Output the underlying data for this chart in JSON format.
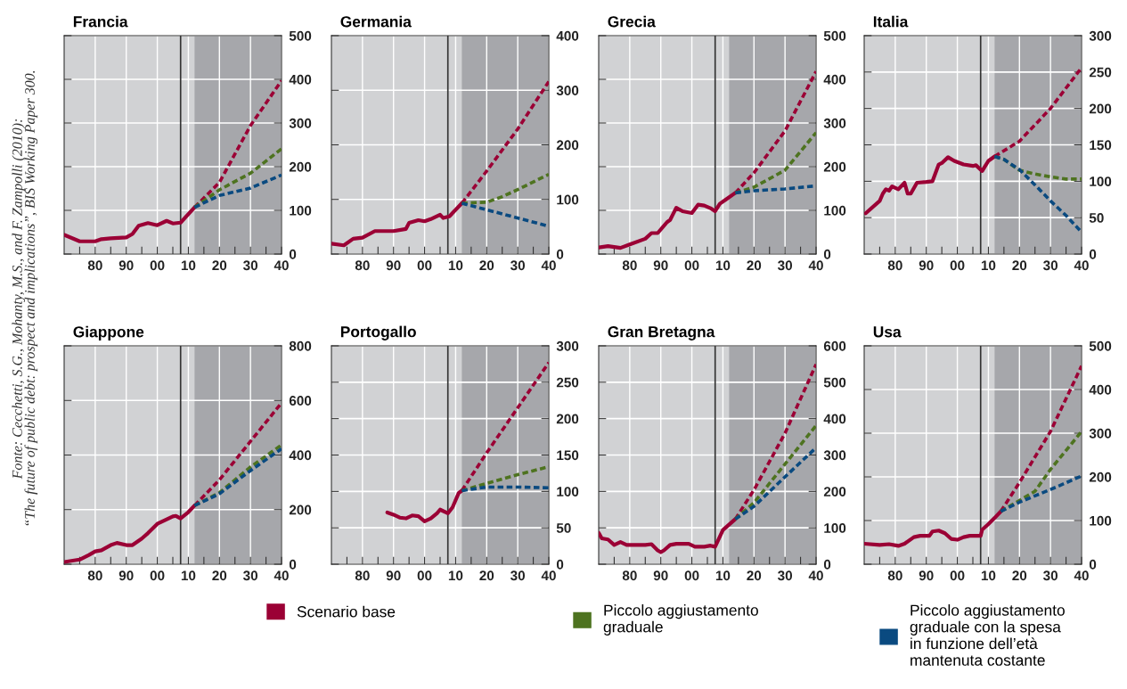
{
  "chart_data": [
    {
      "type": "line",
      "title": "Francia",
      "xlim": [
        1970,
        2040
      ],
      "ylim": [
        0,
        500
      ],
      "yticks": [
        0,
        100,
        200,
        300,
        400,
        500
      ],
      "grid": true,
      "legend": "bottom",
      "xticks": [
        {
          "value": 1975,
          "label": null
        },
        {
          "value": 1980,
          "label": "80"
        },
        {
          "value": 1985,
          "label": null
        },
        {
          "value": 1990,
          "label": "90"
        },
        {
          "value": 1995,
          "label": null
        },
        {
          "value": 2000,
          "label": "00"
        },
        {
          "value": 2005,
          "label": null
        },
        {
          "value": 2010,
          "label": "10"
        },
        {
          "value": 2015,
          "label": null
        },
        {
          "value": 2020,
          "label": "20"
        },
        {
          "value": 2025,
          "label": null
        },
        {
          "value": 2030,
          "label": "30"
        },
        {
          "value": 2035,
          "label": null
        },
        {
          "value": 2040,
          "label": "40"
        }
      ],
      "bands": [
        {
          "axis": "x",
          "from": 2012,
          "to": 2040,
          "color": "#a6a7ab"
        }
      ],
      "ref_lines": [
        {
          "axis": "x",
          "value": 2007.5,
          "color": "#333333"
        }
      ],
      "annotations": [
        "Fonte: Cecchetti, S.G., Mohanty, M.S., and F. Zampolli (2010):\n“The future of public debt: prospect and implications”, BIS Working Paper 300."
      ],
      "series": [
        {
          "color": "#9b0035",
          "line_style": "solid",
          "x": [
            1970,
            1975,
            1980,
            1982,
            1985,
            1990,
            1992,
            1994,
            1997,
            2000,
            2003,
            2005,
            2007.5,
            2012
          ],
          "values": [
            44,
            29,
            29,
            34,
            36,
            38,
            46,
            65,
            71,
            66,
            76,
            70,
            72,
            107
          ]
        },
        {
          "name": "Scenario base",
          "color": "#9b0035",
          "line_style": "dashed",
          "x": [
            2012,
            2020,
            2030,
            2040
          ],
          "values": [
            107,
            164,
            294,
            397
          ]
        },
        {
          "name": "Piccolo aggiustamento\ngraduale",
          "color": "#4e7320",
          "line_style": "dashed",
          "x": [
            2012,
            2020,
            2030,
            2040
          ],
          "values": [
            107,
            147,
            185,
            241
          ]
        },
        {
          "name": "Piccolo aggiustamento\ngraduale con la spesa\nin funzione dell’età\nmantenuta costante",
          "color": "#0a4a80",
          "line_style": "dashed",
          "x": [
            2012,
            2020,
            2030,
            2040
          ],
          "values": [
            107,
            134,
            151,
            181
          ]
        }
      ]
    },
    {
      "type": "line",
      "title": "Germania",
      "xlim": [
        1970,
        2040
      ],
      "ylim": [
        0,
        400
      ],
      "yticks": [
        0,
        100,
        200,
        300,
        400
      ],
      "grid": true,
      "xticks": [
        {
          "value": 1975,
          "label": null
        },
        {
          "value": 1980,
          "label": "80"
        },
        {
          "value": 1985,
          "label": null
        },
        {
          "value": 1990,
          "label": "90"
        },
        {
          "value": 1995,
          "label": null
        },
        {
          "value": 2000,
          "label": "00"
        },
        {
          "value": 2005,
          "label": null
        },
        {
          "value": 2010,
          "label": "10"
        },
        {
          "value": 2015,
          "label": null
        },
        {
          "value": 2020,
          "label": "20"
        },
        {
          "value": 2025,
          "label": null
        },
        {
          "value": 2030,
          "label": "30"
        },
        {
          "value": 2035,
          "label": null
        },
        {
          "value": 2040,
          "label": "40"
        }
      ],
      "bands": [
        {
          "axis": "x",
          "from": 2012,
          "to": 2040,
          "color": "#a6a7ab"
        }
      ],
      "ref_lines": [
        {
          "axis": "x",
          "value": 2007.5,
          "color": "#333333"
        }
      ],
      "series": [
        {
          "color": "#9b0035",
          "line_style": "solid",
          "x": [
            1970,
            1974,
            1977,
            1980,
            1984,
            1987,
            1990,
            1994,
            1995,
            1998,
            2000,
            2002,
            2005,
            2006,
            2008,
            2012
          ],
          "values": [
            19,
            16,
            28,
            30,
            42,
            42,
            42,
            46,
            57,
            62,
            60,
            64,
            72,
            66,
            69,
            93
          ]
        },
        {
          "color": "#9b0035",
          "line_style": "dashed",
          "x": [
            2012,
            2020,
            2030,
            2040
          ],
          "values": [
            93,
            152,
            229,
            316
          ]
        },
        {
          "color": "#4e7320",
          "line_style": "dashed",
          "x": [
            2012,
            2020,
            2025,
            2030,
            2040
          ],
          "values": [
            93,
            95,
            105,
            118,
            146
          ]
        },
        {
          "color": "#0a4a80",
          "line_style": "dashed",
          "x": [
            2012,
            2026,
            2040
          ],
          "values": [
            93,
            72,
            51
          ]
        }
      ]
    },
    {
      "type": "line",
      "title": "Grecia",
      "xlim": [
        1970,
        2040
      ],
      "ylim": [
        0,
        500
      ],
      "yticks": [
        0,
        100,
        200,
        300,
        400,
        500
      ],
      "grid": true,
      "xticks": [
        {
          "value": 1975,
          "label": null
        },
        {
          "value": 1980,
          "label": "80"
        },
        {
          "value": 1985,
          "label": null
        },
        {
          "value": 1990,
          "label": "90"
        },
        {
          "value": 1995,
          "label": null
        },
        {
          "value": 2000,
          "label": "00"
        },
        {
          "value": 2005,
          "label": null
        },
        {
          "value": 2010,
          "label": "10"
        },
        {
          "value": 2015,
          "label": null
        },
        {
          "value": 2020,
          "label": "20"
        },
        {
          "value": 2025,
          "label": null
        },
        {
          "value": 2030,
          "label": "30"
        },
        {
          "value": 2035,
          "label": null
        },
        {
          "value": 2040,
          "label": "40"
        }
      ],
      "bands": [
        {
          "axis": "x",
          "from": 2012,
          "to": 2040,
          "color": "#a6a7ab"
        }
      ],
      "ref_lines": [
        {
          "axis": "x",
          "value": 2007.5,
          "color": "#333333"
        }
      ],
      "series": [
        {
          "color": "#9b0035",
          "line_style": "solid",
          "x": [
            1970,
            1973,
            1977,
            1980,
            1985,
            1987,
            1989,
            1992,
            1993,
            1994,
            1995,
            1997,
            2000,
            2002,
            2004,
            2006,
            2007.5,
            2009,
            2011,
            2014
          ],
          "values": [
            15,
            18,
            14,
            22,
            35,
            48,
            48,
            73,
            78,
            92,
            106,
            98,
            94,
            113,
            111,
            105,
            98,
            115,
            125,
            140
          ]
        },
        {
          "color": "#9b0035",
          "line_style": "dashed",
          "x": [
            2014,
            2020,
            2030,
            2040
          ],
          "values": [
            140,
            186,
            282,
            418
          ]
        },
        {
          "color": "#4e7320",
          "line_style": "dashed",
          "x": [
            2014,
            2020,
            2030,
            2040
          ],
          "values": [
            140,
            153,
            192,
            278
          ]
        },
        {
          "color": "#0a4a80",
          "line_style": "dashed",
          "x": [
            2014,
            2020,
            2030,
            2040
          ],
          "values": [
            140,
            145,
            149,
            156
          ]
        }
      ]
    },
    {
      "type": "line",
      "title": "Italia",
      "xlim": [
        1970,
        2040
      ],
      "ylim": [
        0,
        300
      ],
      "yticks": [
        0,
        50,
        100,
        150,
        200,
        250,
        300
      ],
      "grid": true,
      "xticks": [
        {
          "value": 1975,
          "label": null
        },
        {
          "value": 1980,
          "label": "80"
        },
        {
          "value": 1985,
          "label": null
        },
        {
          "value": 1990,
          "label": "90"
        },
        {
          "value": 1995,
          "label": null
        },
        {
          "value": 2000,
          "label": "00"
        },
        {
          "value": 2005,
          "label": null
        },
        {
          "value": 2010,
          "label": "10"
        },
        {
          "value": 2015,
          "label": null
        },
        {
          "value": 2020,
          "label": "20"
        },
        {
          "value": 2025,
          "label": null
        },
        {
          "value": 2030,
          "label": "30"
        },
        {
          "value": 2035,
          "label": null
        },
        {
          "value": 2040,
          "label": "40"
        }
      ],
      "bands": [
        {
          "axis": "x",
          "from": 2012,
          "to": 2040,
          "color": "#a6a7ab"
        }
      ],
      "ref_lines": [
        {
          "axis": "x",
          "value": 2007.5,
          "color": "#333333"
        }
      ],
      "series": [
        {
          "color": "#9b0035",
          "line_style": "solid",
          "x": [
            1970.5,
            1975,
            1976,
            1977,
            1978,
            1979,
            1981,
            1983,
            1984,
            1985,
            1987,
            1990,
            1992,
            1994,
            1995,
            1997,
            1999,
            2002,
            2005,
            2006,
            2008,
            2009,
            2010,
            2012
          ],
          "values": [
            56,
            73,
            83,
            89,
            87,
            93,
            89,
            98,
            83,
            83,
            98,
            99,
            100,
            123,
            125,
            133,
            128,
            123,
            121,
            122,
            114,
            121,
            128,
            134
          ]
        },
        {
          "color": "#9b0035",
          "line_style": "dashed",
          "x": [
            2012,
            2020,
            2030,
            2040
          ],
          "values": [
            134,
            155,
            200,
            256
          ]
        },
        {
          "color": "#4e7320",
          "line_style": "dashed",
          "x": [
            2012,
            2015,
            2020,
            2025,
            2030,
            2035,
            2040
          ],
          "values": [
            134,
            130,
            115,
            110,
            106,
            103,
            103
          ]
        },
        {
          "color": "#0a4a80",
          "line_style": "dashed",
          "x": [
            2012,
            2015,
            2020,
            2025,
            2030,
            2035,
            2040
          ],
          "values": [
            134,
            130,
            116,
            95,
            73,
            53,
            30
          ]
        }
      ]
    },
    {
      "type": "line",
      "title": "Giappone",
      "xlim": [
        1970,
        2040
      ],
      "ylim": [
        0,
        800
      ],
      "yticks": [
        0,
        200,
        400,
        600,
        800
      ],
      "grid": true,
      "xticks": [
        {
          "value": 1975,
          "label": null
        },
        {
          "value": 1980,
          "label": "80"
        },
        {
          "value": 1985,
          "label": null
        },
        {
          "value": 1990,
          "label": "90"
        },
        {
          "value": 1995,
          "label": null
        },
        {
          "value": 2000,
          "label": "00"
        },
        {
          "value": 2005,
          "label": null
        },
        {
          "value": 2010,
          "label": "10"
        },
        {
          "value": 2015,
          "label": null
        },
        {
          "value": 2020,
          "label": "20"
        },
        {
          "value": 2025,
          "label": null
        },
        {
          "value": 2030,
          "label": "30"
        },
        {
          "value": 2035,
          "label": null
        },
        {
          "value": 2040,
          "label": "40"
        }
      ],
      "bands": [
        {
          "axis": "x",
          "from": 2012,
          "to": 2040,
          "color": "#a6a7ab"
        }
      ],
      "ref_lines": [
        {
          "axis": "x",
          "value": 2007.5,
          "color": "#333333"
        }
      ],
      "series": [
        {
          "color": "#9b0035",
          "line_style": "solid",
          "x": [
            1970,
            1975,
            1978,
            1980,
            1982,
            1985,
            1987,
            1990,
            1992,
            1995,
            1997,
            2000,
            2002,
            2005,
            2006,
            2007.5,
            2010,
            2012
          ],
          "values": [
            8,
            17,
            34,
            47,
            51,
            70,
            78,
            70,
            70,
            94,
            114,
            148,
            159,
            175,
            177,
            168,
            191,
            215
          ]
        },
        {
          "color": "#9b0035",
          "line_style": "dashed",
          "x": [
            2012,
            2020,
            2030,
            2040
          ],
          "values": [
            215,
            309,
            450,
            591
          ]
        },
        {
          "color": "#4e7320",
          "line_style": "dashed",
          "x": [
            2012,
            2020,
            2030,
            2040
          ],
          "values": [
            215,
            262,
            356,
            437
          ]
        },
        {
          "color": "#0a4a80",
          "line_style": "dashed",
          "x": [
            2012,
            2020,
            2030,
            2040
          ],
          "values": [
            215,
            258,
            343,
            423
          ]
        }
      ]
    },
    {
      "type": "line",
      "title": "Portogallo",
      "xlim": [
        1970,
        2040
      ],
      "ylim": [
        0,
        300
      ],
      "yticks": [
        0,
        50,
        100,
        150,
        200,
        250,
        300
      ],
      "grid": true,
      "xticks": [
        {
          "value": 1975,
          "label": null
        },
        {
          "value": 1980,
          "label": "80"
        },
        {
          "value": 1985,
          "label": null
        },
        {
          "value": 1990,
          "label": "90"
        },
        {
          "value": 1995,
          "label": null
        },
        {
          "value": 2000,
          "label": "00"
        },
        {
          "value": 2005,
          "label": null
        },
        {
          "value": 2010,
          "label": "10"
        },
        {
          "value": 2015,
          "label": null
        },
        {
          "value": 2020,
          "label": "20"
        },
        {
          "value": 2025,
          "label": null
        },
        {
          "value": 2030,
          "label": "30"
        },
        {
          "value": 2035,
          "label": null
        },
        {
          "value": 2040,
          "label": "40"
        }
      ],
      "bands": [
        {
          "axis": "x",
          "from": 2012,
          "to": 2040,
          "color": "#a6a7ab"
        }
      ],
      "ref_lines": [
        {
          "axis": "x",
          "value": 2007.5,
          "color": "#333333"
        }
      ],
      "series": [
        {
          "color": "#9b0035",
          "line_style": "solid",
          "x": [
            1988,
            1990,
            1992,
            1994,
            1996,
            1998,
            2000,
            2002,
            2004,
            2005,
            2007.5,
            2009,
            2011,
            2012
          ],
          "values": [
            71,
            68,
            64,
            63,
            67,
            66,
            59,
            63,
            70,
            75,
            70,
            78,
            98,
            101
          ]
        },
        {
          "color": "#9b0035",
          "line_style": "dashed",
          "x": [
            2012,
            2020,
            2030,
            2040
          ],
          "values": [
            101,
            153,
            215,
            277
          ]
        },
        {
          "color": "#4e7320",
          "line_style": "dashed",
          "x": [
            2012,
            2020,
            2030,
            2040
          ],
          "values": [
            101,
            111,
            123,
            134
          ]
        },
        {
          "color": "#0a4a80",
          "line_style": "dashed",
          "x": [
            2012,
            2020,
            2030,
            2040
          ],
          "values": [
            101,
            106,
            106,
            105
          ]
        }
      ]
    },
    {
      "type": "line",
      "title": "Gran Bretagna",
      "xlim": [
        1970,
        2040
      ],
      "ylim": [
        0,
        600
      ],
      "yticks": [
        0,
        100,
        200,
        300,
        400,
        500,
        600
      ],
      "grid": true,
      "xticks": [
        {
          "value": 1975,
          "label": null
        },
        {
          "value": 1980,
          "label": "80"
        },
        {
          "value": 1985,
          "label": null
        },
        {
          "value": 1990,
          "label": "90"
        },
        {
          "value": 1995,
          "label": null
        },
        {
          "value": 2000,
          "label": "00"
        },
        {
          "value": 2005,
          "label": null
        },
        {
          "value": 2010,
          "label": "10"
        },
        {
          "value": 2015,
          "label": null
        },
        {
          "value": 2020,
          "label": "20"
        },
        {
          "value": 2025,
          "label": null
        },
        {
          "value": 2030,
          "label": "30"
        },
        {
          "value": 2035,
          "label": null
        },
        {
          "value": 2040,
          "label": "40"
        }
      ],
      "bands": [
        {
          "axis": "x",
          "from": 2012,
          "to": 2040,
          "color": "#a6a7ab"
        }
      ],
      "ref_lines": [
        {
          "axis": "x",
          "value": 2007.5,
          "color": "#333333"
        }
      ],
      "series": [
        {
          "color": "#9b0035",
          "line_style": "solid",
          "x": [
            1970,
            1971,
            1973,
            1975,
            1977,
            1979,
            1982,
            1985,
            1987,
            1989,
            1990,
            1991,
            1993,
            1995,
            1999,
            2001,
            2004,
            2006,
            2007.5,
            2010,
            2014
          ],
          "values": [
            86,
            71,
            68,
            53,
            61,
            53,
            53,
            53,
            55,
            38,
            33,
            38,
            53,
            56,
            56,
            48,
            48,
            51,
            48,
            94,
            124
          ]
        },
        {
          "color": "#9b0035",
          "line_style": "dashed",
          "x": [
            2014,
            2020,
            2030,
            2040
          ],
          "values": [
            124,
            204,
            360,
            549
          ]
        },
        {
          "color": "#4e7320",
          "line_style": "dashed",
          "x": [
            2014,
            2020,
            2030,
            2040
          ],
          "values": [
            124,
            169,
            275,
            381
          ]
        },
        {
          "color": "#0a4a80",
          "line_style": "dashed",
          "x": [
            2014,
            2020,
            2030,
            2040
          ],
          "values": [
            124,
            159,
            240,
            320
          ]
        }
      ]
    },
    {
      "type": "line",
      "title": "Usa",
      "xlim": [
        1970,
        2040
      ],
      "ylim": [
        0,
        500
      ],
      "yticks": [
        0,
        100,
        200,
        300,
        400,
        500
      ],
      "grid": true,
      "xticks": [
        {
          "value": 1975,
          "label": null
        },
        {
          "value": 1980,
          "label": "80"
        },
        {
          "value": 1985,
          "label": null
        },
        {
          "value": 1990,
          "label": "90"
        },
        {
          "value": 1995,
          "label": null
        },
        {
          "value": 2000,
          "label": "00"
        },
        {
          "value": 2005,
          "label": null
        },
        {
          "value": 2010,
          "label": "10"
        },
        {
          "value": 2015,
          "label": null
        },
        {
          "value": 2020,
          "label": "20"
        },
        {
          "value": 2025,
          "label": null
        },
        {
          "value": 2030,
          "label": "30"
        },
        {
          "value": 2035,
          "label": null
        },
        {
          "value": 2040,
          "label": "40"
        }
      ],
      "bands": [
        {
          "axis": "x",
          "from": 2012,
          "to": 2040,
          "color": "#a6a7ab"
        }
      ],
      "ref_lines": [
        {
          "axis": "x",
          "value": 2007.5,
          "color": "#333333"
        }
      ],
      "series": [
        {
          "color": "#9b0035",
          "line_style": "solid",
          "x": [
            1970,
            1975,
            1978,
            1981,
            1983,
            1986,
            1988,
            1991,
            1992,
            1994,
            1996,
            1998,
            2000,
            2002,
            2004,
            2007.5,
            2008,
            2010,
            2012,
            2014
          ],
          "values": [
            47,
            44,
            46,
            42,
            47,
            62,
            65,
            65,
            75,
            77,
            71,
            58,
            56,
            62,
            65,
            65,
            79,
            92,
            106,
            121
          ]
        },
        {
          "color": "#9b0035",
          "line_style": "dashed",
          "x": [
            2014,
            2020,
            2030,
            2040
          ],
          "values": [
            121,
            187,
            304,
            454
          ]
        },
        {
          "color": "#4e7320",
          "line_style": "dashed",
          "x": [
            2014,
            2020,
            2025,
            2030,
            2040
          ],
          "values": [
            121,
            146,
            167,
            217,
            304
          ]
        },
        {
          "color": "#0a4a80",
          "line_style": "dashed",
          "x": [
            2014,
            2020,
            2030,
            2040
          ],
          "values": [
            121,
            142,
            171,
            202
          ]
        }
      ]
    }
  ]
}
